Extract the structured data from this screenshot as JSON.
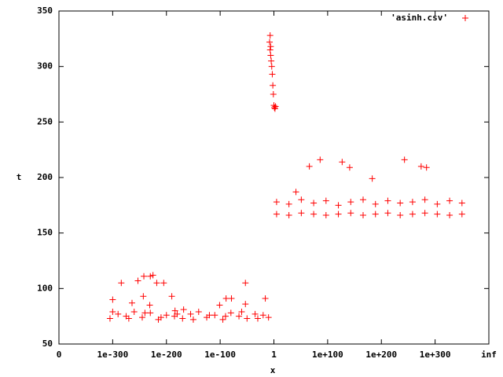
{
  "chart_data": {
    "type": "scatter",
    "x_label": "x",
    "y_label": "t",
    "xlim": [
      -400,
      400
    ],
    "xticks": [
      {
        "value": -400,
        "label": "0"
      },
      {
        "value": -300,
        "label": "1e-300"
      },
      {
        "value": -200,
        "label": "1e-200"
      },
      {
        "value": -100,
        "label": "1e-100"
      },
      {
        "value": 0,
        "label": "1"
      },
      {
        "value": 100,
        "label": "1e+100"
      },
      {
        "value": 200,
        "label": "1e+200"
      },
      {
        "value": 300,
        "label": "1e+300"
      },
      {
        "value": 400,
        "label": "inf"
      }
    ],
    "ylim": [
      50,
      350
    ],
    "yticks": [
      50,
      100,
      150,
      200,
      250,
      300,
      350
    ],
    "legend": "top-right",
    "series": [
      {
        "name": "'asinh.csv'",
        "color": "#ff0000",
        "x": [
          -305,
          -290,
          -275,
          -260,
          -245,
          -230,
          -215,
          -200,
          -185,
          -170,
          -155,
          -140,
          -125,
          -110,
          -95,
          -80,
          -65,
          -50,
          -35,
          -20,
          -10,
          -300,
          -270,
          -240,
          -210,
          -180,
          -150,
          -120,
          -90,
          -60,
          -30,
          -300,
          -284,
          -253,
          -264,
          -243,
          -242,
          -230,
          -225,
          -218,
          -205,
          -190,
          -184,
          -168,
          -101,
          -89,
          -79,
          -53,
          -53,
          -16,
          -231,
          -8,
          -7,
          -7,
          -6,
          -6,
          -5,
          -4,
          -3,
          -2,
          -1,
          0,
          1,
          2,
          3,
          5,
          28,
          51,
          74,
          97,
          120,
          143,
          166,
          189,
          212,
          235,
          258,
          281,
          304,
          327,
          350,
          5,
          28,
          51,
          74,
          97,
          120,
          143,
          166,
          189,
          212,
          235,
          258,
          281,
          304,
          327,
          350,
          41,
          66,
          86,
          127,
          141,
          183,
          243,
          274,
          284
        ],
        "values": [
          73,
          77,
          75,
          79,
          74,
          78,
          72,
          76,
          75,
          73,
          77,
          79,
          74,
          76,
          72,
          78,
          75,
          73,
          77,
          76,
          74,
          79,
          73,
          78,
          74,
          77,
          72,
          76,
          75,
          79,
          73,
          90,
          105,
          107,
          87,
          93,
          111,
          111,
          112,
          105,
          105,
          93,
          80,
          81,
          85,
          91,
          91,
          105,
          86,
          91,
          85,
          322,
          328,
          315,
          310,
          318,
          305,
          300,
          293,
          283,
          275,
          265,
          263,
          262,
          264,
          178,
          176,
          180,
          177,
          179,
          175,
          178,
          180,
          176,
          179,
          177,
          178,
          180,
          176,
          179,
          177,
          167,
          166,
          168,
          167,
          166,
          167,
          168,
          166,
          167,
          168,
          166,
          167,
          168,
          167,
          166,
          167,
          187,
          210,
          216,
          214,
          209,
          199,
          216,
          210,
          209
        ]
      }
    ]
  }
}
